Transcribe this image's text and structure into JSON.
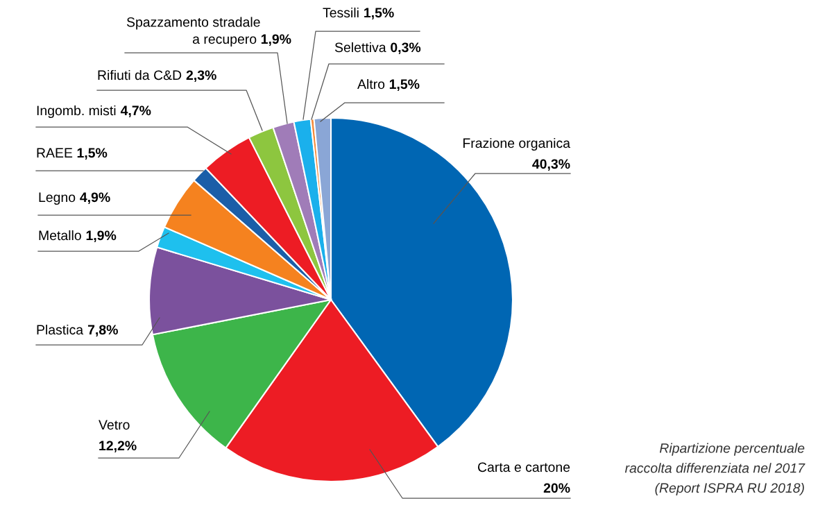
{
  "chart_data": {
    "type": "pie",
    "categories": [
      "Frazione organica",
      "Carta e cartone",
      "Vetro",
      "Plastica",
      "Metallo",
      "Legno",
      "RAEE",
      "Ingomb. misti",
      "Rifiuti da C&D",
      "Spazzamento stradale\na recupero",
      "Tessili",
      "Selettiva",
      "Altro"
    ],
    "values": [
      40.3,
      20,
      12.2,
      7.8,
      1.9,
      4.9,
      1.5,
      4.7,
      2.3,
      1.9,
      1.5,
      0.3,
      1.5
    ],
    "colors": [
      "#0066b3",
      "#ed1c24",
      "#3db54a",
      "#7b519d",
      "#1ec0ee",
      "#f5821f",
      "#1b5ea8",
      "#ed1c24",
      "#8dc63f",
      "#a07cb8",
      "#1ab0ec",
      "#f58a3a",
      "#8aa6d6"
    ],
    "value_labels": [
      "40,3%",
      "20%",
      "12,2%",
      "7,8%",
      "1,9%",
      "4,9%",
      "1,5%",
      "4,7%",
      "2,3%",
      "1,9%",
      "1,5%",
      "0,3%",
      "1,5%"
    ],
    "annotations": [
      "Ripartizione percentuale\nraccolta differenziata nel 2017\n(Report ISPRA RU 2018)"
    ]
  }
}
